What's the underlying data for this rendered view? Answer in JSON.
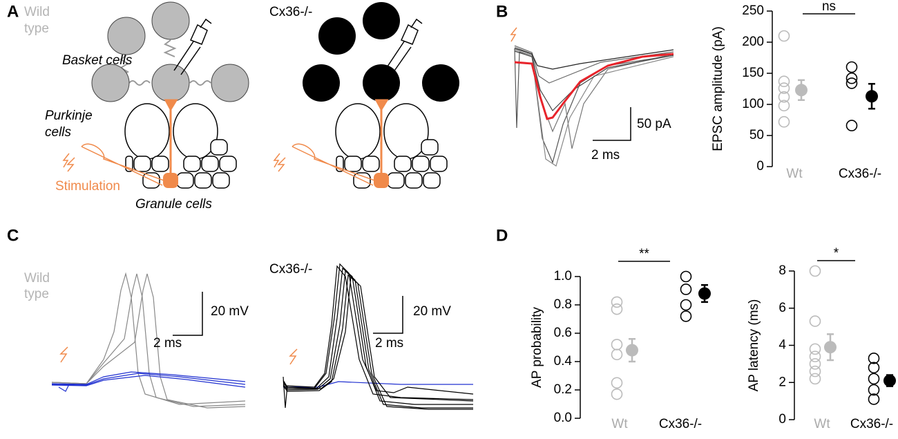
{
  "figure": {
    "panel_a": "A",
    "panel_b": "B",
    "panel_c": "C",
    "panel_d": "D",
    "a_wt_line1": "Wild",
    "a_wt_line2": "type",
    "a_ko": "Cx36-/-",
    "basket": "Basket cells",
    "purkinje_line1": "Purkinje",
    "purkinje_line2": "cells",
    "stimulation": "Stimulation",
    "granule": "Granule cells",
    "b_scale_y": "50 pA",
    "b_scale_x": "2 ms",
    "c_wt_line1": "Wild",
    "c_wt_line2": "type",
    "c_ko": "Cx36-/-",
    "c_wt_scale_y": "20 mV",
    "c_wt_scale_x": "2 ms",
    "c_ko_scale_y": "20 mV",
    "c_ko_scale_x": "2 ms"
  },
  "chart_data": [
    {
      "type": "dot",
      "ylabel": "EPSC amplitude (pA)",
      "categories": [
        "Wt",
        "Cx36-/-"
      ],
      "colors": [
        "#bbbbbb",
        "#000000"
      ],
      "points": [
        [
          210,
          137,
          126,
          112,
          98,
          72
        ],
        [
          160,
          142,
          134,
          66
        ]
      ],
      "means": [
        123,
        113
      ],
      "errors": [
        16,
        20
      ],
      "ylim": [
        0,
        250
      ],
      "yticks": [
        0,
        50,
        100,
        150,
        200,
        250
      ],
      "annotation": "ns"
    },
    {
      "type": "dot",
      "ylabel": "AP probability",
      "categories": [
        "Wt",
        "Cx36-/-"
      ],
      "colors": [
        "#bbbbbb",
        "#000000"
      ],
      "points": [
        [
          0.82,
          0.77,
          0.52,
          0.45,
          0.25,
          0.17
        ],
        [
          1.0,
          0.91,
          0.8,
          0.72
        ]
      ],
      "means": [
        0.48,
        0.88
      ],
      "errors": [
        0.08,
        0.06
      ],
      "ylim": [
        0,
        1.0
      ],
      "yticks": [
        {
          "value": 0,
          "label": "0.0"
        },
        0.2,
        0.4,
        0.6,
        0.8,
        {
          "value": 1,
          "label": "1.0"
        }
      ],
      "annotation": "**"
    },
    {
      "type": "dot",
      "ylabel": "AP latency (ms)",
      "categories": [
        "Wt",
        "Cx36-/-"
      ],
      "colors": [
        "#bbbbbb",
        "#000000"
      ],
      "points": [
        [
          8.0,
          5.3,
          3.8,
          3.4,
          3.0,
          2.6,
          2.2
        ],
        [
          3.3,
          2.8,
          2.2,
          1.6,
          1.1
        ]
      ],
      "means": [
        3.9,
        2.1
      ],
      "errors": [
        0.7,
        0.3
      ],
      "ylim": [
        0,
        8
      ],
      "yticks": [
        0,
        2,
        4,
        6,
        8
      ],
      "annotation": "*"
    }
  ]
}
